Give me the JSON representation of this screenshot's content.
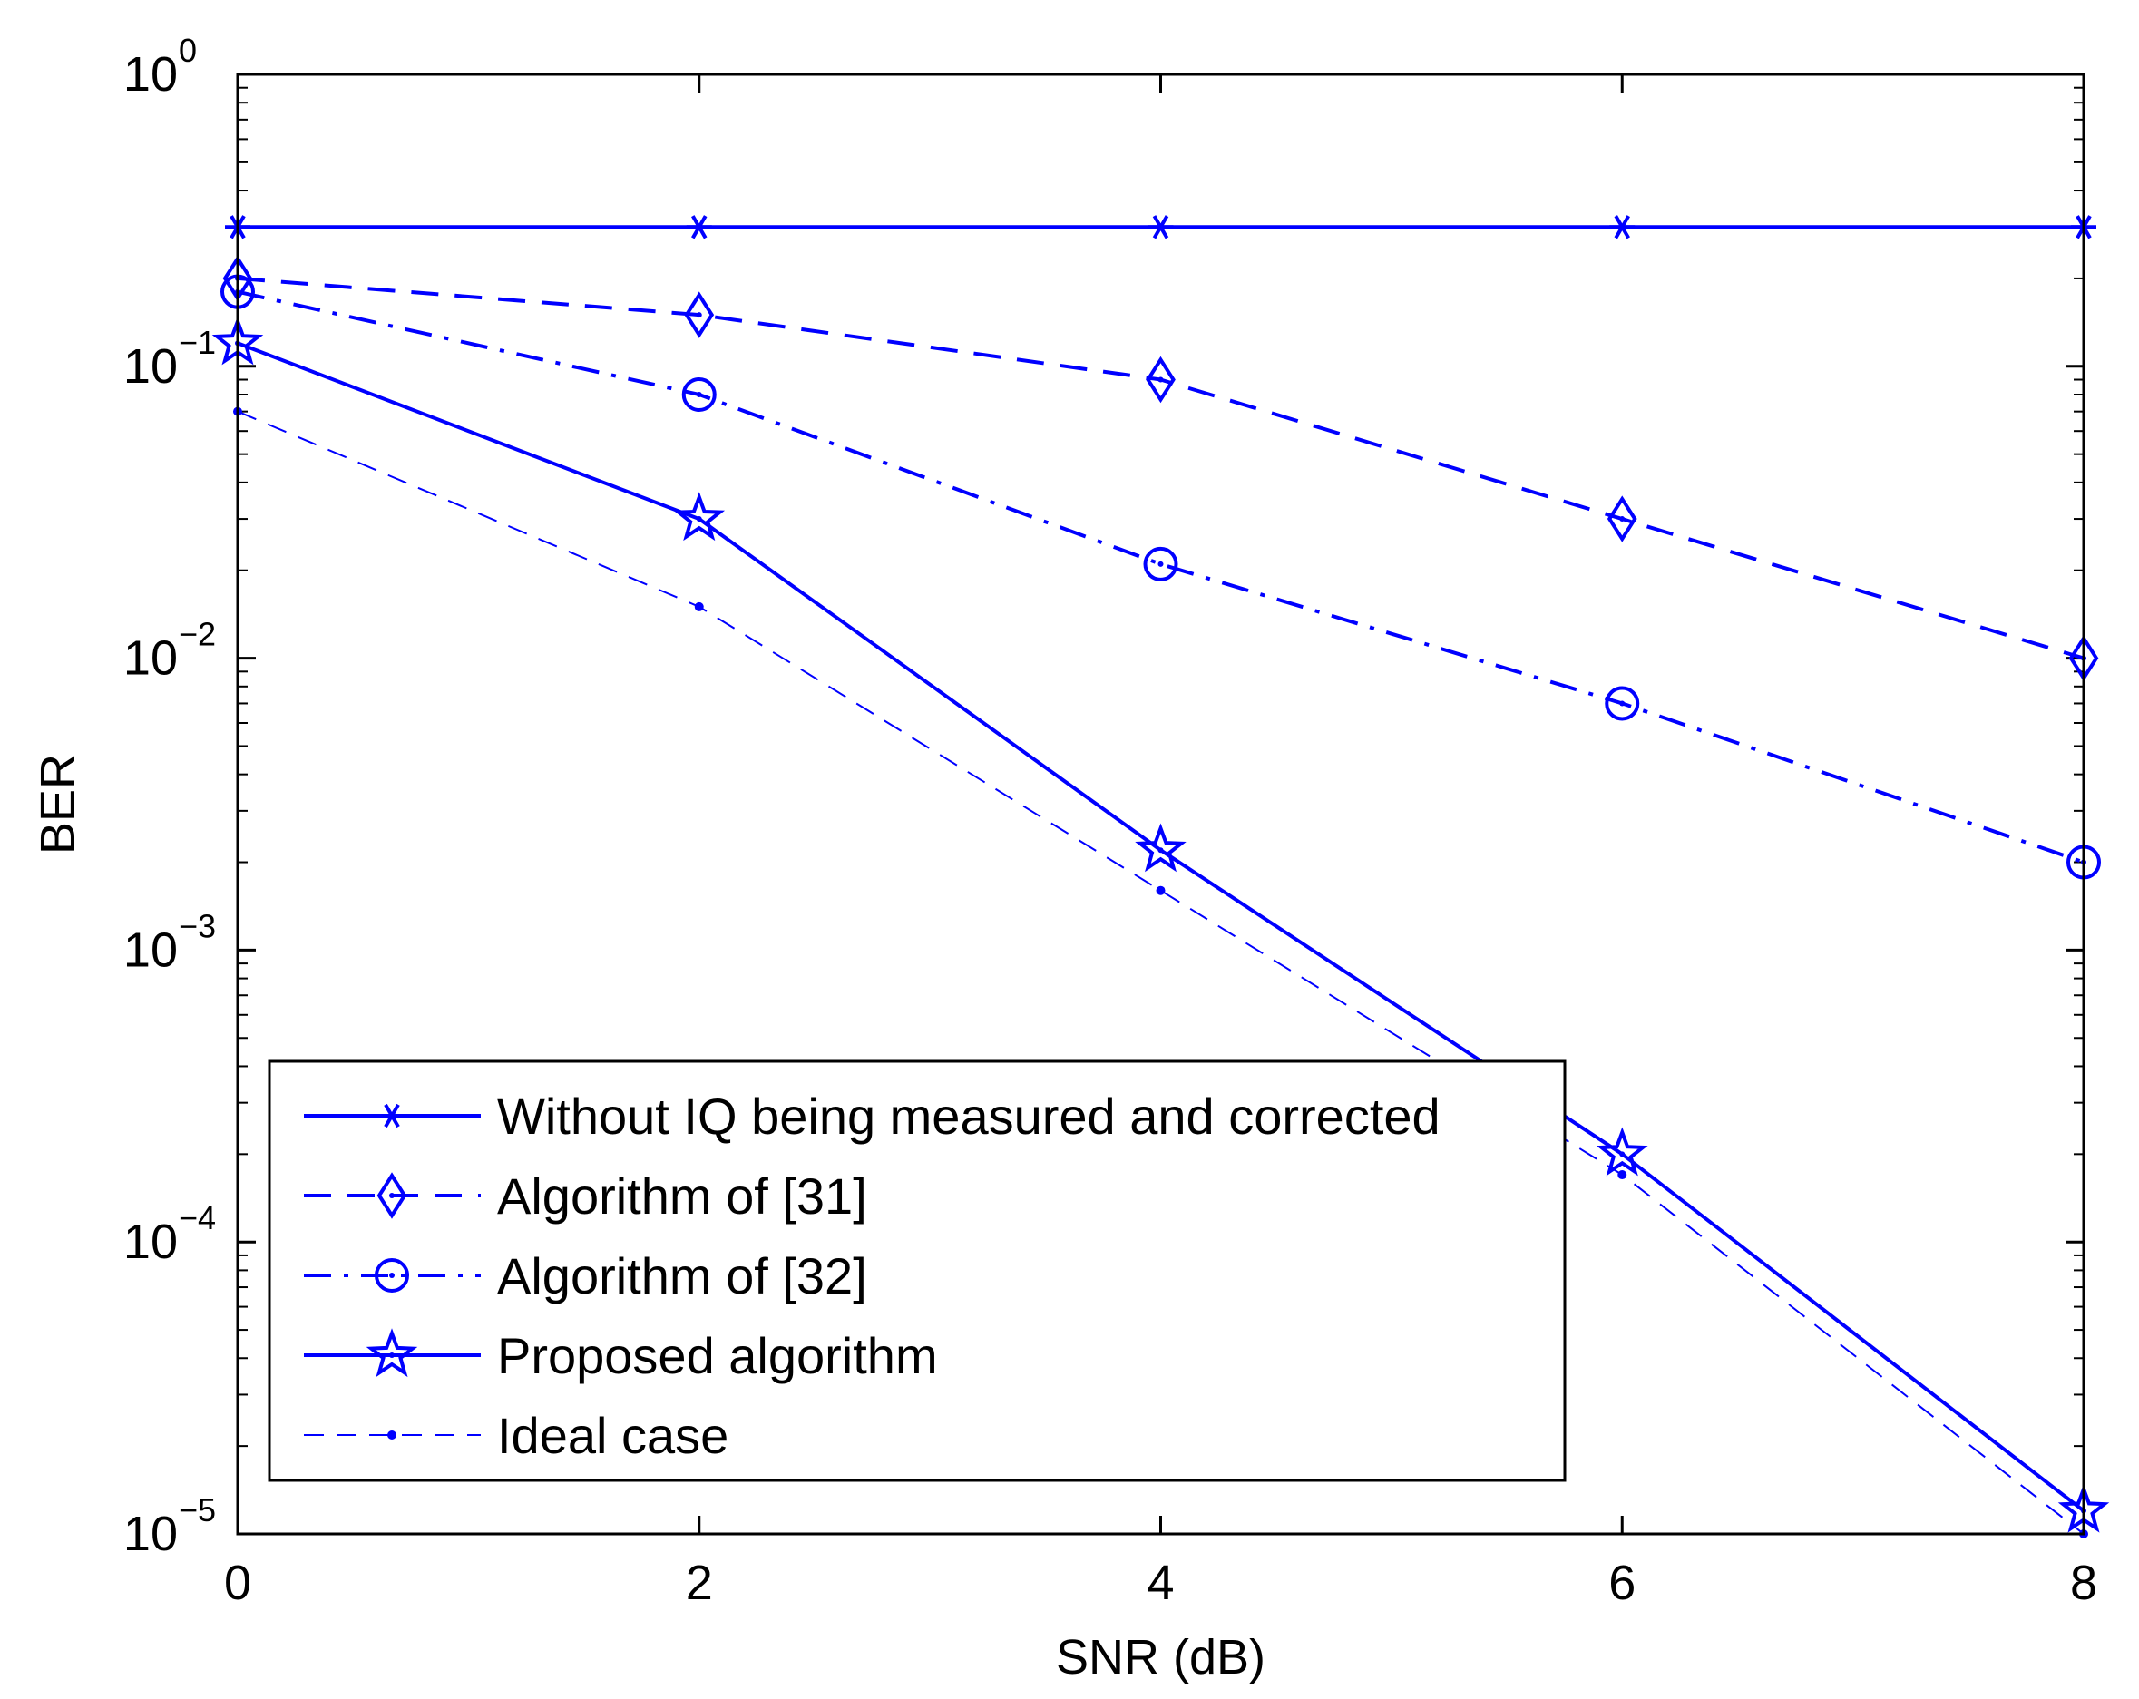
{
  "chart_data": {
    "type": "line",
    "title": "",
    "xlabel": "SNR (dB)",
    "ylabel": "BER",
    "yscale": "log",
    "xlim": [
      0,
      8
    ],
    "ylim": [
      1e-05,
      1
    ],
    "x_ticks": [
      0,
      2,
      4,
      6,
      8
    ],
    "x_tick_labels": [
      "0",
      "2",
      "4",
      "6",
      "8"
    ],
    "y_ticks": [
      {
        "value": 1,
        "base": "10",
        "exp": "0"
      },
      {
        "value": 0.1,
        "base": "10",
        "exp": "−1"
      },
      {
        "value": 0.01,
        "base": "10",
        "exp": "−2"
      },
      {
        "value": 0.001,
        "base": "10",
        "exp": "−3"
      },
      {
        "value": 0.0001,
        "base": "10",
        "exp": "−4"
      },
      {
        "value": 1e-05,
        "base": "10",
        "exp": "−5"
      }
    ],
    "grid": false,
    "legend_position": "bottom-left",
    "x": [
      0,
      2,
      4,
      6,
      8
    ],
    "series": [
      {
        "name": "Without IQ being measured and corrected",
        "values": [
          0.3,
          0.3,
          0.3,
          0.3,
          0.3
        ],
        "marker": "asterisk",
        "linestyle": "solid",
        "linewidth": 4
      },
      {
        "name": "Algorithm of [31]",
        "values": [
          0.2,
          0.15,
          0.09,
          0.03,
          0.01
        ],
        "marker": "diamond",
        "linestyle": "dashed",
        "linewidth": 4
      },
      {
        "name": "Algorithm of [32]",
        "values": [
          0.18,
          0.08,
          0.021,
          0.007,
          0.002
        ],
        "marker": "circle",
        "linestyle": "dashdot",
        "linewidth": 4
      },
      {
        "name": "Proposed algorithm",
        "values": [
          0.12,
          0.03,
          0.0022,
          0.0002,
          1.2e-05
        ],
        "marker": "star",
        "linestyle": "solid",
        "linewidth": 4
      },
      {
        "name": "Ideal case",
        "values": [
          0.07,
          0.015,
          0.0016,
          0.00017,
          1e-05
        ],
        "marker": "dot",
        "linestyle": "dashed",
        "linewidth": 2
      }
    ],
    "color": "#0000ff"
  }
}
